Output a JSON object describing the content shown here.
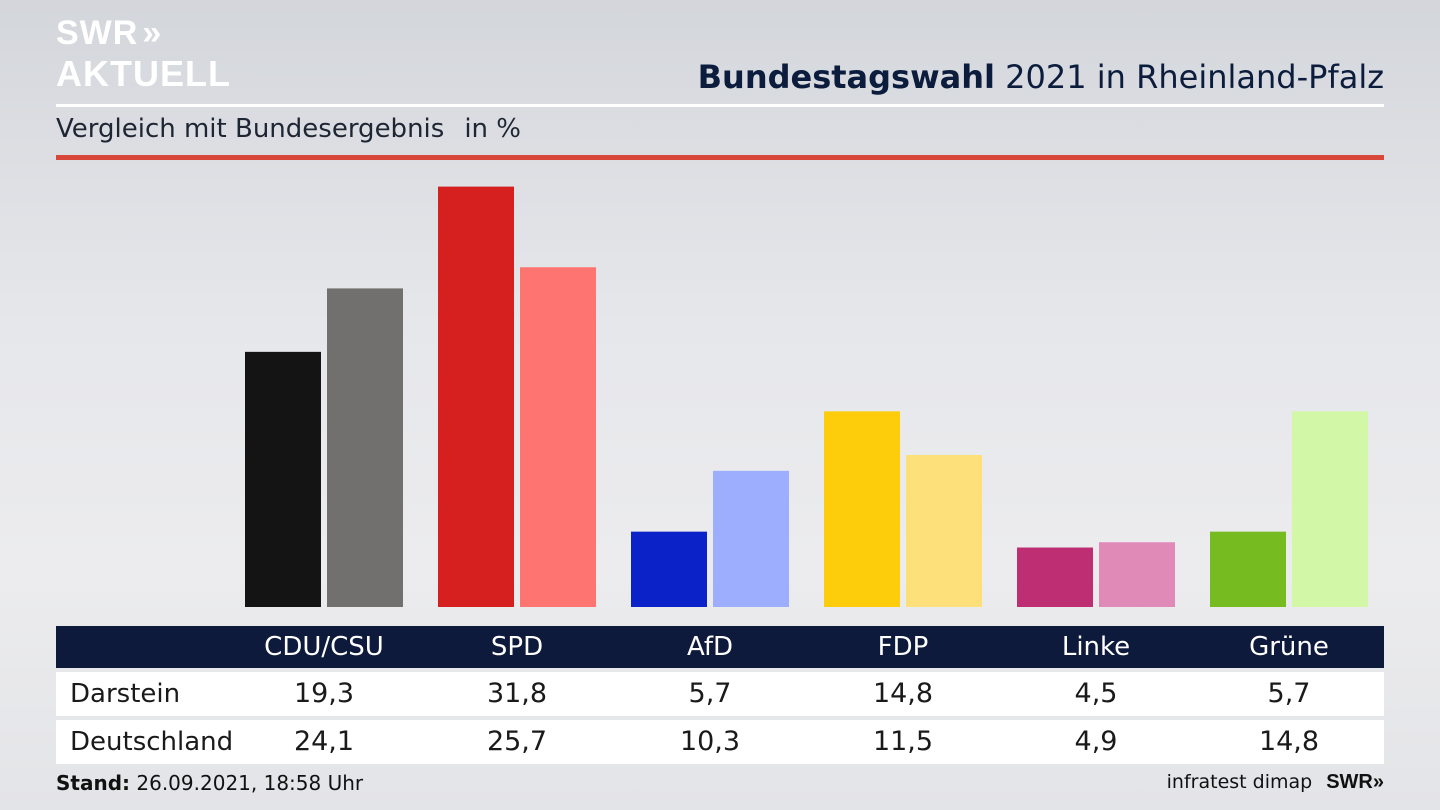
{
  "header": {
    "logo_line1": "SWR",
    "logo_chevrons": "»",
    "logo_line2": "AKTUELL",
    "title_bold": "Bundestagswahl",
    "title_rest": "2021 in Rheinland-Pfalz",
    "subtitle": "Vergleich mit Bundesergebnis",
    "unit": "in %"
  },
  "colors": {
    "header_bar": "#0e1a3c",
    "rule": "#d9473b"
  },
  "chart_data": {
    "type": "bar",
    "title": "Bundestagswahl 2021 in Rheinland-Pfalz",
    "subtitle": "Vergleich mit Bundesergebnis in %",
    "categories": [
      "CDU/CSU",
      "SPD",
      "AfD",
      "FDP",
      "Linke",
      "Grüne"
    ],
    "series": [
      {
        "name": "Darstein",
        "values": [
          19.3,
          31.8,
          5.7,
          14.8,
          4.5,
          5.7
        ],
        "colors": [
          "#141414",
          "#d62020",
          "#0a22c8",
          "#fdcc0a",
          "#bd2f72",
          "#76bc21"
        ]
      },
      {
        "name": "Deutschland",
        "values": [
          24.1,
          25.7,
          10.3,
          11.5,
          4.9,
          14.8
        ],
        "colors": [
          "#72706e",
          "#fd7470",
          "#9eaefe",
          "#fde07a",
          "#e08ab8",
          "#d2f7a6"
        ]
      }
    ],
    "ylim": [
      0,
      32
    ],
    "grid": false
  },
  "table": {
    "headers": [
      "CDU/CSU",
      "SPD",
      "AfD",
      "FDP",
      "Linke",
      "Grüne"
    ],
    "rows": [
      {
        "label": "Darstein",
        "values": [
          "19,3",
          "31,8",
          "5,7",
          "14,8",
          "4,5",
          "5,7"
        ]
      },
      {
        "label": "Deutschland",
        "values": [
          "24,1",
          "25,7",
          "10,3",
          "11,5",
          "4,9",
          "14,8"
        ]
      }
    ]
  },
  "footer": {
    "stand_label": "Stand:",
    "stand_value": "26.09.2021, 18:58 Uhr",
    "source": "infratest dimap",
    "brand": "SWR»"
  }
}
